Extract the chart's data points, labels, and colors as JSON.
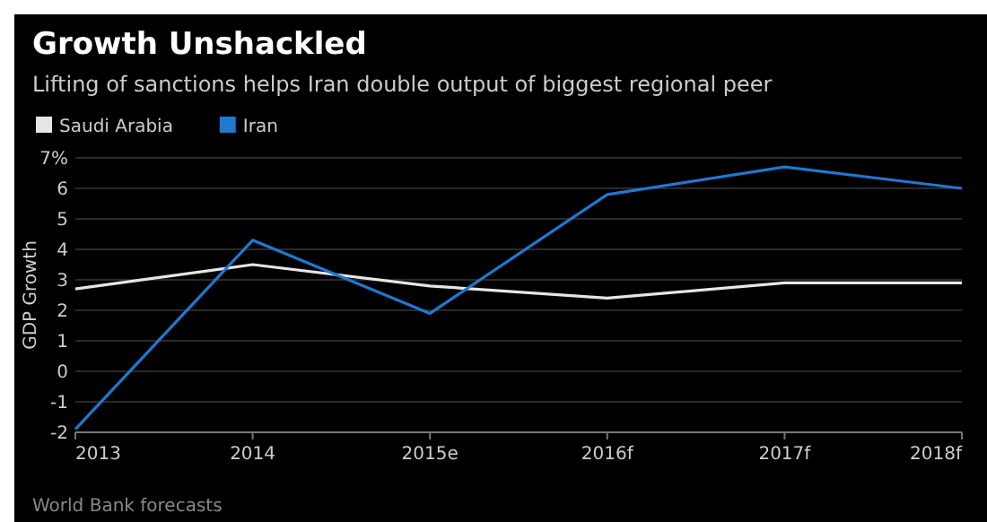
{
  "chart_data": {
    "type": "line",
    "title": "Growth Unshackled",
    "subtitle": "Lifting of sanctions helps Iran double output of biggest regional peer",
    "ylabel": "GDP Growth",
    "categories": [
      "2013",
      "2014",
      "2015e",
      "2016f",
      "2017f",
      "2018f"
    ],
    "series": [
      {
        "name": "Saudi Arabia",
        "color": "#e6e6e6",
        "values": [
          2.7,
          3.5,
          2.8,
          2.4,
          2.9,
          2.9
        ]
      },
      {
        "name": "Iran",
        "color": "#1f78d1",
        "values": [
          -1.9,
          4.3,
          1.9,
          5.8,
          6.7,
          6.0
        ]
      }
    ],
    "ylim": [
      -2,
      7
    ],
    "yticks": [
      -2,
      -1,
      0,
      1,
      2,
      3,
      4,
      5,
      6,
      {
        "value": 7,
        "label": "7%"
      }
    ],
    "grid": "y",
    "legend": "top left",
    "annotations": [
      "World Bank forecasts"
    ]
  }
}
